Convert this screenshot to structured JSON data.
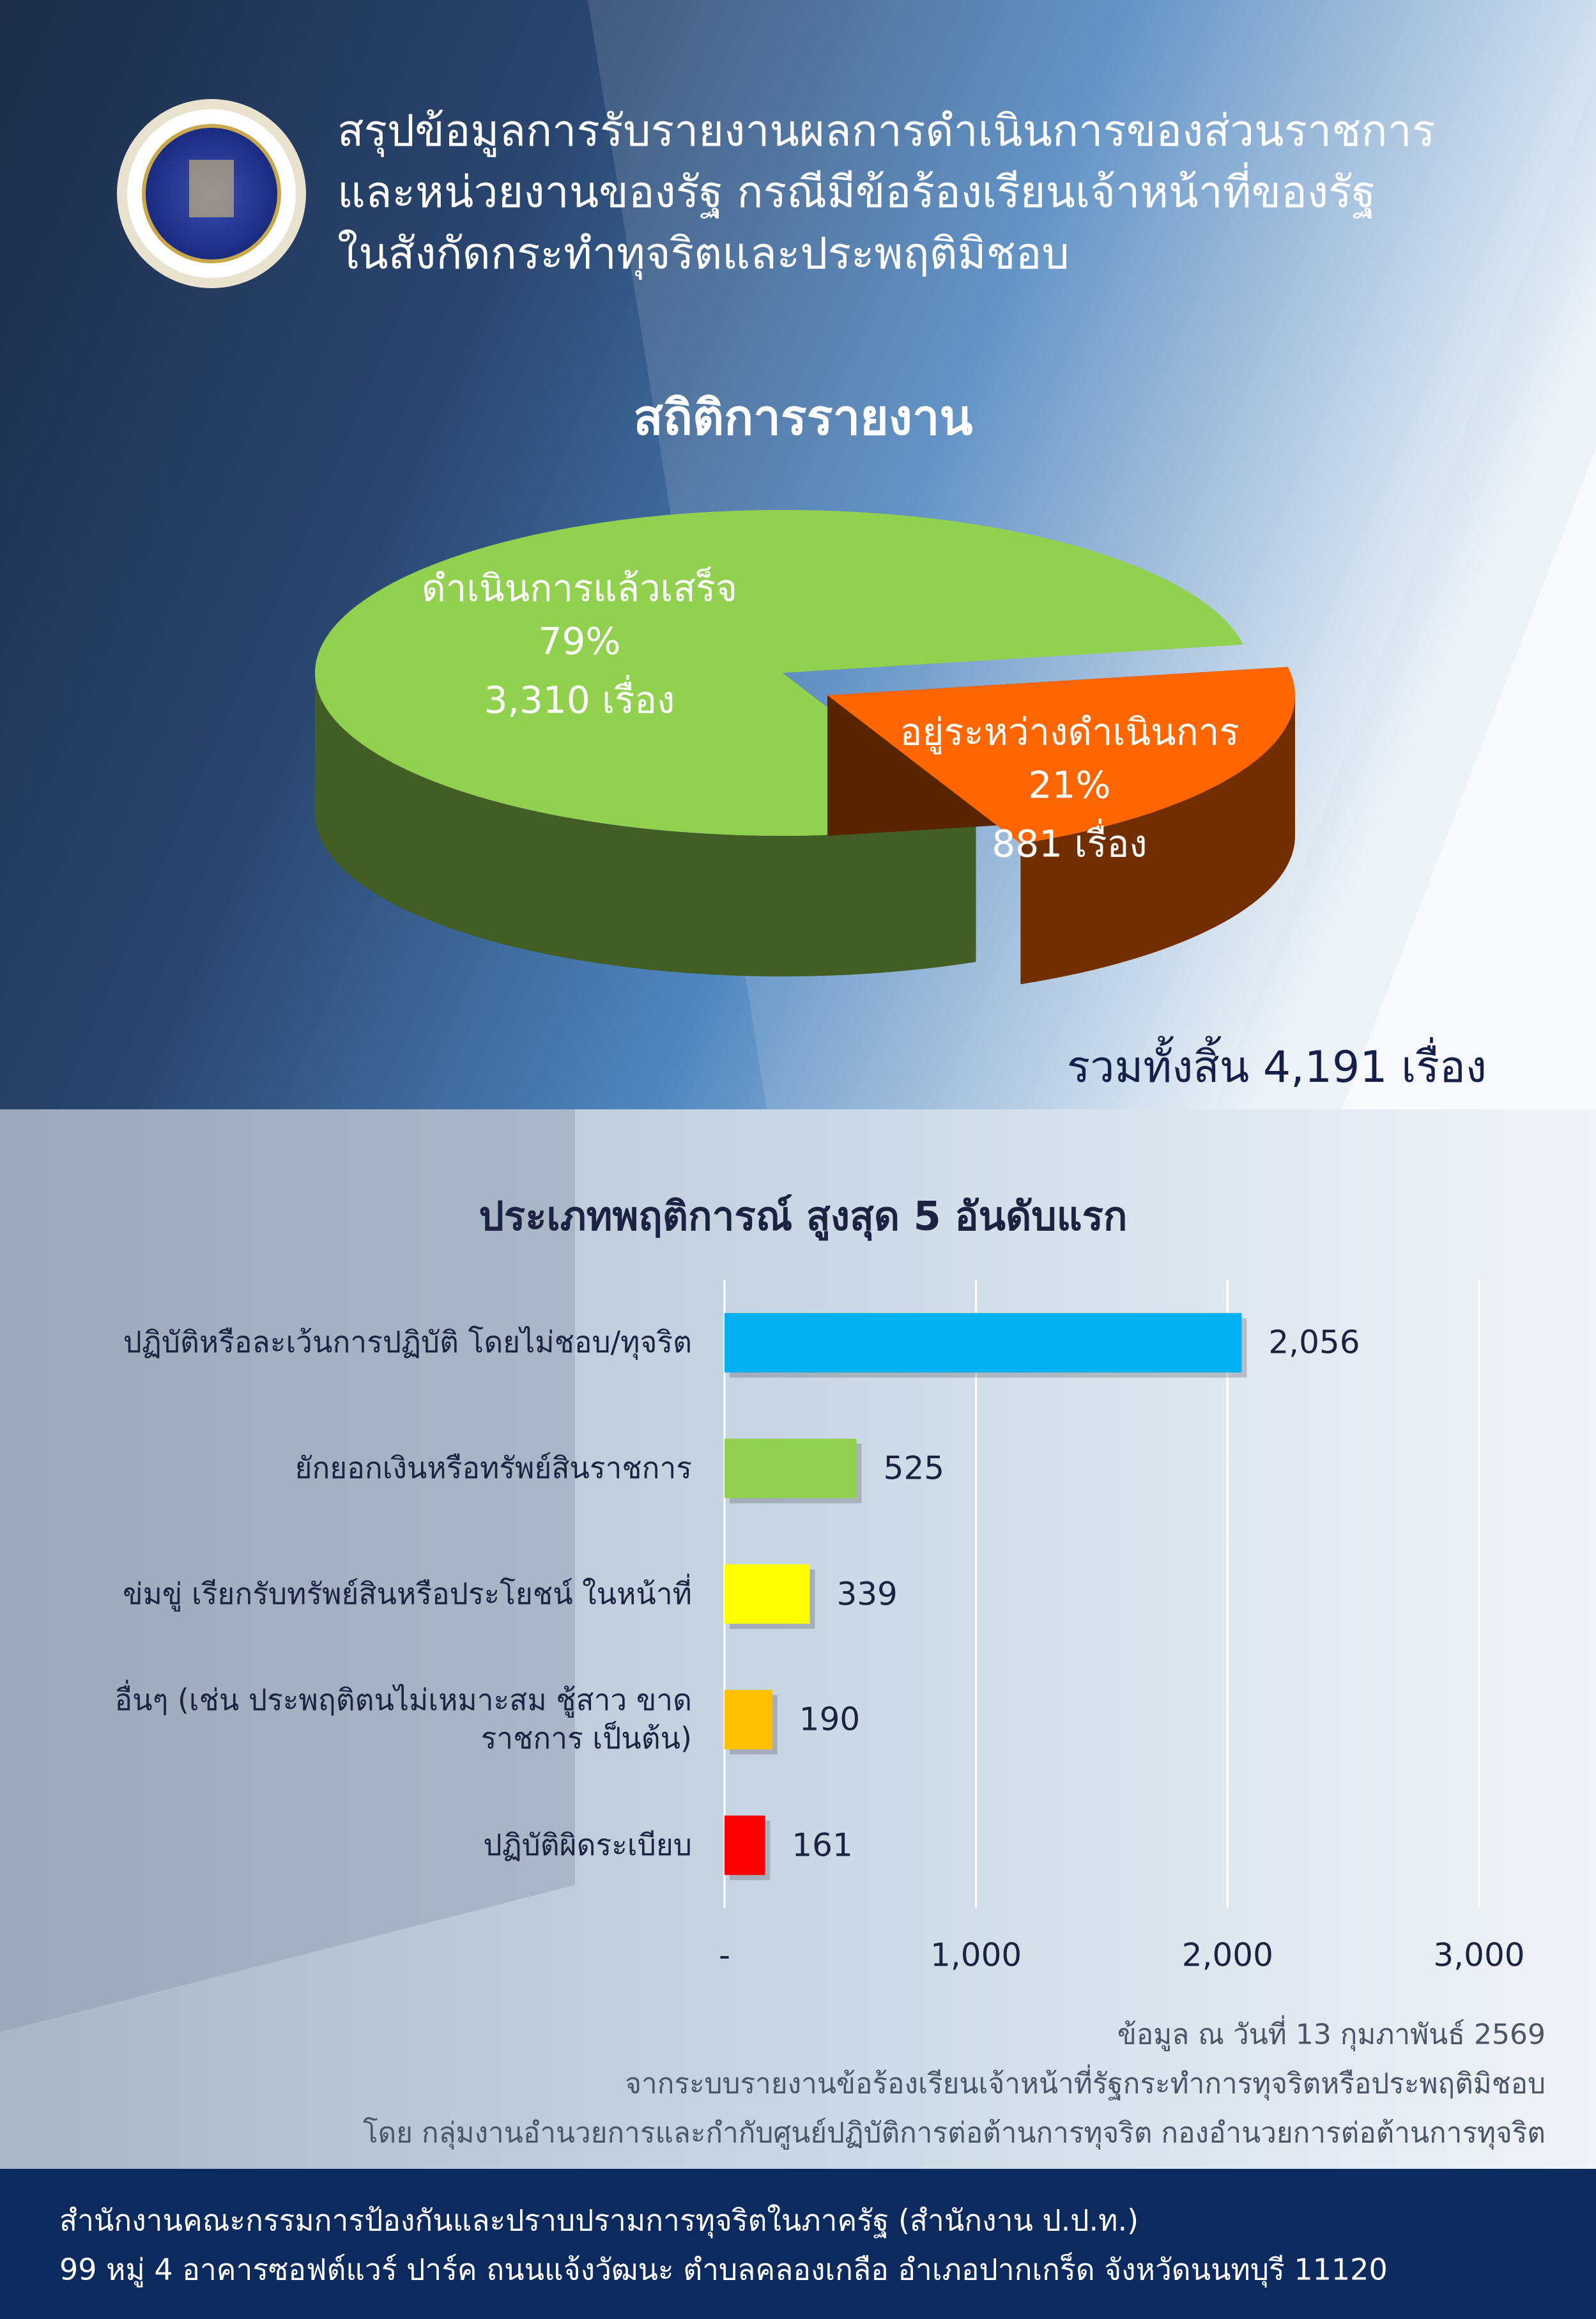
{
  "header": {
    "title_lines": [
      "สรุปข้อมูลการรับรายงานผลการดำเนินการของส่วนราชการ",
      "และหน่วยงานของรัฐ กรณีมีข้อร้องเรียนเจ้าหน้าที่ของรัฐ",
      "ในสังกัดกระทำทุจริตและประพฤติมิชอบ"
    ]
  },
  "chart_data": [
    {
      "type": "pie",
      "title": "สถิติการรายงาน",
      "labels": [
        "ดำเนินการแล้วเสร็จ",
        "อยู่ระหว่างดำเนินการ"
      ],
      "values": [
        79,
        21
      ],
      "value_labels": [
        "79%",
        "21%"
      ],
      "count_labels": [
        "3,310 เรื่อง",
        "881 เรื่อง"
      ],
      "colors": [
        "#92d050",
        "#ff6600"
      ],
      "total_label": "รวมทั้งสิ้น 4,191 เรื่อง"
    },
    {
      "type": "bar",
      "orientation": "horizontal",
      "title": "ประเภทพฤติการณ์ สูงสุด 5 อันดับแรก",
      "categories": [
        "ปฏิบัติหรือละเว้นการปฏิบัติ โดยไม่ชอบ/ทุจริต",
        "ยักยอกเงินหรือทรัพย์สินราชการ",
        "ข่มขู่ เรียกรับทรัพย์สินหรือประโยชน์ ในหน้าที่",
        "อื่นๆ (เช่น ประพฤติตนไม่เหมาะสม ชู้สาว ขาดราชการ เป็นต้น)",
        "ปฏิบัติผิดระเบียบ"
      ],
      "values": [
        2056,
        525,
        339,
        190,
        161
      ],
      "value_labels": [
        "2,056",
        "525",
        "339",
        "190",
        "161"
      ],
      "colors": [
        "#00b0f0",
        "#92d050",
        "#ffff00",
        "#ffc000",
        "#ff0000"
      ],
      "xlim": [
        0,
        3000
      ],
      "xticks": [
        {
          "value": 0,
          "label": "-"
        },
        {
          "value": 1000,
          "label": "1,000"
        },
        {
          "value": 2000,
          "label": "2,000"
        },
        {
          "value": 3000,
          "label": "3,000"
        }
      ],
      "grid": true
    }
  ],
  "source": {
    "lines": [
      "ข้อมูล ณ วันที่ 13 กุมภาพันธ์ 2569",
      "จากระบบรายงานข้อร้องเรียนเจ้าหน้าที่รัฐกระทำการทุจริตหรือประพฤติมิชอบ",
      "โดย กลุ่มงานอำนวยการและกำกับศูนย์ปฏิบัติการต่อต้านการทุจริต กองอำนวยการต่อต้านการทุจริต"
    ]
  },
  "footer": {
    "lines": [
      "สำนักงานคณะกรรมการป้องกันและปราบปรามการทุจริตในภาครัฐ (สำนักงาน ป.ป.ท.)",
      "99 หมู่ 4 อาคารซอฟต์แวร์ ปาร์ค ถนนแจ้งวัฒนะ ตำบลคลองเกลือ อำเภอปากเกร็ด จังหวัดนนทบุรี 11120"
    ]
  }
}
